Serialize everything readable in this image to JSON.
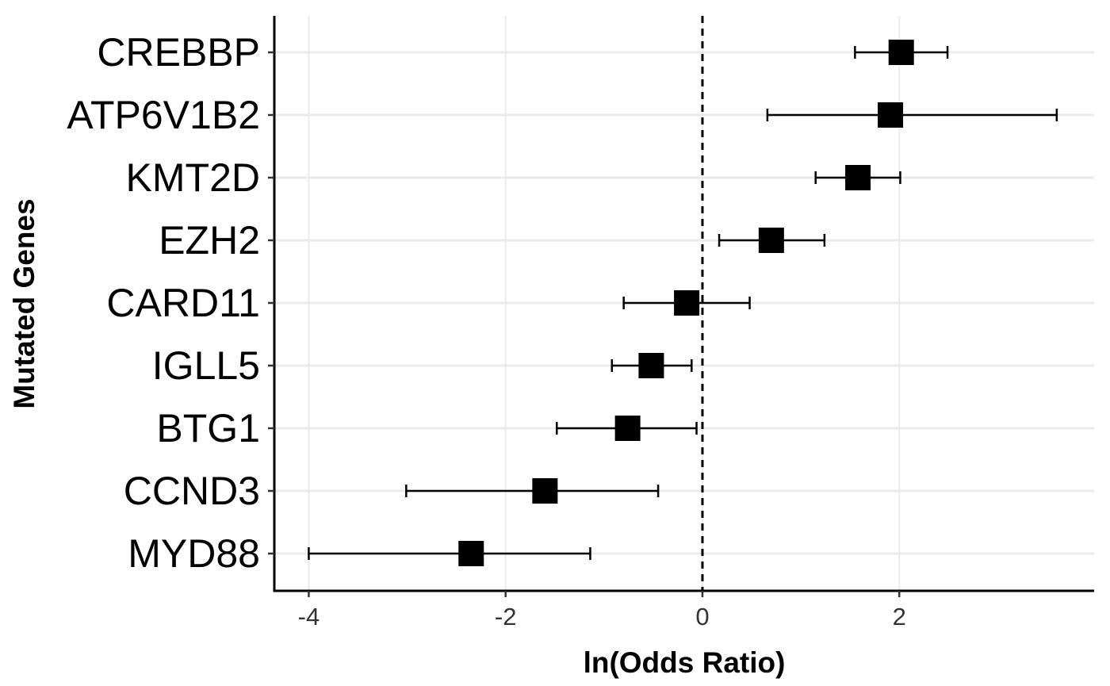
{
  "chart_data": {
    "type": "forest",
    "xlabel": "ln(Odds Ratio)",
    "ylabel": "Mutated Genes",
    "xlim": [
      -4.35,
      3.98
    ],
    "xticks": [
      -4,
      -2,
      0,
      2
    ],
    "xtick_labels": [
      "-4",
      "-2",
      "0",
      "2"
    ],
    "reference_line": {
      "x": 0,
      "style": "dashed"
    },
    "grid": true,
    "categories": [
      "CREBBP",
      "ATP6V1B2",
      "KMT2D",
      "EZH2",
      "CARD11",
      "IGLL5",
      "BTG1",
      "CCND3",
      "MYD88"
    ],
    "estimates": [
      2.02,
      1.91,
      1.58,
      0.7,
      -0.16,
      -0.52,
      -0.76,
      -1.6,
      -2.35
    ],
    "ci_lower": [
      1.55,
      0.66,
      1.15,
      0.17,
      -0.8,
      -0.92,
      -1.48,
      -3.01,
      -4.0
    ],
    "ci_upper": [
      2.49,
      3.6,
      2.01,
      1.24,
      0.48,
      -0.11,
      -0.06,
      -0.45,
      -1.14
    ]
  }
}
